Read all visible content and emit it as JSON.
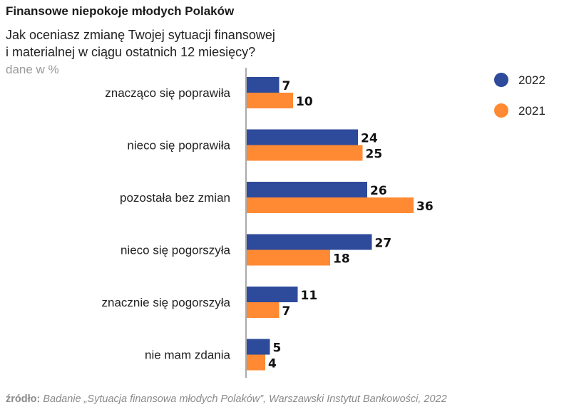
{
  "title": "Finansowe niepokoje młodych Polaków",
  "subtitle_lines": [
    "Jak oceniasz zmianę Twojej sytuacji finansowej",
    "i materialnej w ciągu ostatnich 12 miesięcy?"
  ],
  "unit_note": "dane w %",
  "source_label": "źródło:",
  "source_text": "Badanie „Sytuacja finansowa młodych Polaków”, Warszawski Instytut Bankowości, 2022",
  "chart_data": {
    "type": "bar",
    "orientation": "horizontal",
    "categories": [
      "znacząco się poprawiła",
      "nieco się poprawiła",
      "pozostała bez zmian",
      "nieco się pogorszyła",
      "znacznie się pogorszyła",
      "nie mam zdania"
    ],
    "series": [
      {
        "name": "2022",
        "color": "#2e4a9a",
        "values": [
          7,
          24,
          26,
          27,
          11,
          5
        ]
      },
      {
        "name": "2021",
        "color": "#ff8a33",
        "values": [
          10,
          25,
          36,
          18,
          7,
          4
        ]
      }
    ],
    "legend_position": "top-right",
    "grid": false,
    "data_labels": true
  }
}
